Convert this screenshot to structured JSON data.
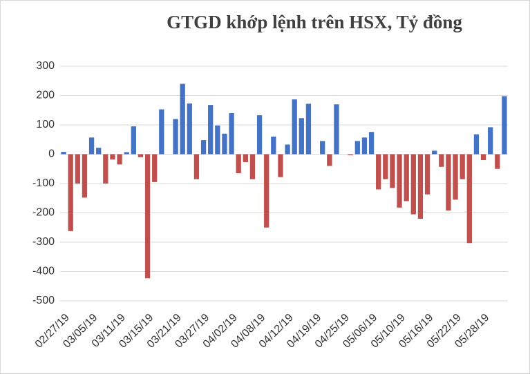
{
  "chart_data": {
    "type": "bar",
    "title": "GTGD khớp lệnh trên HSX, Tỷ đồng",
    "categories": [
      "02/27/19",
      null,
      null,
      null,
      "03/05/19",
      null,
      null,
      null,
      "03/11/19",
      null,
      null,
      null,
      "03/15/19",
      null,
      null,
      null,
      "03/21/19",
      null,
      null,
      null,
      "03/27/19",
      null,
      null,
      null,
      "04/02/19",
      null,
      null,
      null,
      "04/08/19",
      null,
      null,
      null,
      "04/12/19",
      null,
      null,
      null,
      "04/19/19",
      null,
      null,
      null,
      "04/25/19",
      null,
      null,
      null,
      "05/06/19",
      null,
      null,
      null,
      "05/10/19",
      null,
      null,
      null,
      "05/16/19",
      null,
      null,
      null,
      "05/22/19",
      null,
      null,
      null,
      "05/28/19",
      null,
      null,
      null
    ],
    "values": [
      8,
      -262,
      -100,
      -148,
      57,
      22,
      -100,
      -18,
      -35,
      7,
      95,
      -10,
      -423,
      -95,
      153,
      0,
      120,
      240,
      173,
      -85,
      48,
      168,
      98,
      70,
      140,
      -65,
      -27,
      -85,
      133,
      -250,
      60,
      -78,
      33,
      187,
      123,
      172,
      0,
      45,
      -40,
      170,
      0,
      -3,
      45,
      57,
      76,
      -120,
      -85,
      -115,
      -182,
      -160,
      -205,
      -220,
      -137,
      12,
      -43,
      -192,
      -155,
      -85,
      -303,
      68,
      -20,
      92,
      -50,
      198
    ],
    "positive_color": "#4472c4",
    "negative_color": "#c0504d",
    "ylim": [
      -500,
      300
    ],
    "yticks": [
      -500,
      -400,
      -300,
      -200,
      -100,
      0,
      100,
      200,
      300
    ],
    "grid": true
  }
}
